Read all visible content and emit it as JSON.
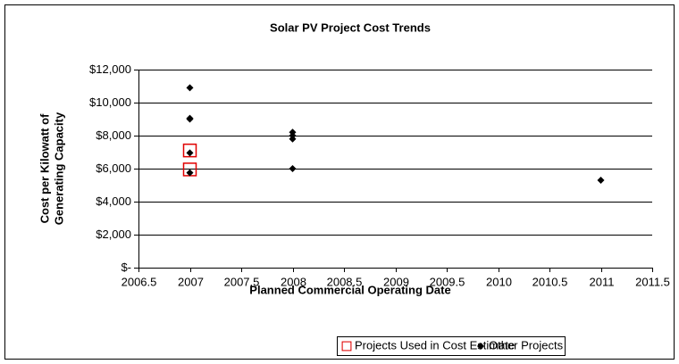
{
  "chart_data": {
    "type": "scatter",
    "title": "Solar PV Project Cost Trends",
    "xlabel": "Planned Commercial Operating Date",
    "ylabel": [
      "Cost per Kilowatt of",
      "Generating Capacity"
    ],
    "xlim": [
      2006.5,
      2011.5
    ],
    "xticks": [
      2006.5,
      2007,
      2007.5,
      2008,
      2008.5,
      2009,
      2009.5,
      2010,
      2010.5,
      2011,
      2011.5
    ],
    "ylim": [
      0,
      12000
    ],
    "yticks": [
      {
        "value": 0,
        "label": "$-"
      },
      {
        "value": 2000,
        "label": "$2,000"
      },
      {
        "value": 4000,
        "label": "$4,000"
      },
      {
        "value": 6000,
        "label": "$6,000"
      },
      {
        "value": 8000,
        "label": "$8,000"
      },
      {
        "value": 10000,
        "label": "$10,000"
      },
      {
        "value": 12000,
        "label": "$12,000"
      }
    ],
    "grid": true,
    "legend": "bottom",
    "series": [
      {
        "name": "Projects Used in Cost Estimate",
        "color": "#e00000",
        "marker": "square-open",
        "x": [
          2007,
          2007
        ],
        "values": [
          7100,
          5950
        ]
      },
      {
        "name": "Other Projects",
        "color": "#000000",
        "marker": "diamond",
        "x": [
          2007,
          2007,
          2007,
          2007,
          2007,
          2008,
          2008,
          2008,
          2008,
          2011
        ],
        "values": [
          10900,
          9050,
          9000,
          6950,
          5750,
          8200,
          8000,
          7800,
          6000,
          5300
        ]
      }
    ]
  }
}
